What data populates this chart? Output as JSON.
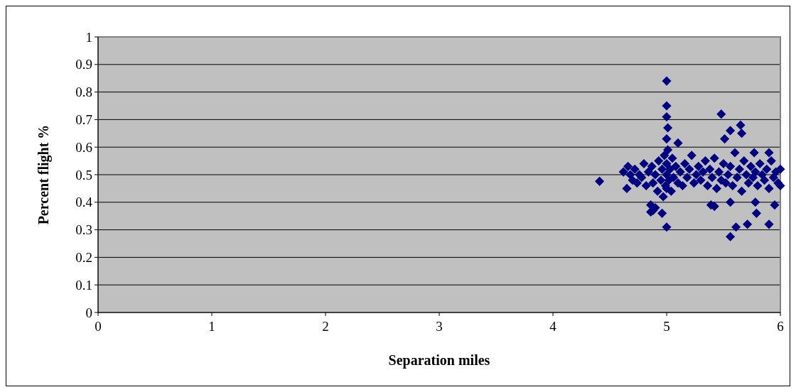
{
  "chart_data": {
    "type": "scatter",
    "xlabel": "Separation miles",
    "ylabel": "Percent flight %",
    "xlim": [
      0,
      6
    ],
    "xticks": [
      0,
      1,
      2,
      3,
      4,
      5,
      6
    ],
    "ylim": [
      0,
      1
    ],
    "yticks": [
      0,
      0.1,
      0.2,
      0.3,
      0.4,
      0.5,
      0.6,
      0.7,
      0.8,
      0.9,
      1
    ],
    "grid": "y",
    "marker": "diamond",
    "series": [
      {
        "color": "#000080",
        "x": [
          4.62,
          4.65,
          4.66,
          4.68,
          4.7,
          4.72,
          4.74,
          4.76,
          4.78,
          4.8,
          4.82,
          4.84,
          4.86,
          4.87,
          4.88,
          4.9,
          4.92,
          4.93,
          4.95,
          4.96,
          4.97,
          4.98,
          4.99,
          5,
          5,
          5,
          5.01,
          5.02,
          5.03,
          5.04,
          5.05,
          5.06,
          5.08,
          5.1,
          5.12,
          5.14,
          5.16,
          5.18,
          5.2,
          5.22,
          5.24,
          5.26,
          5.28,
          5.3,
          5.32,
          5.34,
          5.36,
          5.38,
          5.4,
          5.42,
          5.44,
          5.46,
          5.48,
          5.5,
          5.52,
          5.54,
          5.56,
          5.58,
          5.6,
          5.62,
          5.64,
          5.66,
          5.68,
          5.7,
          5.72,
          5.74,
          5.76,
          5.78,
          5.8,
          5.82,
          5.84,
          5.86,
          5.88,
          5.9,
          5.92,
          5.94,
          5.96,
          5.98,
          6,
          6,
          4.41,
          5,
          5,
          5,
          5.01,
          5,
          5.1,
          5,
          4.88,
          4.9,
          4.96,
          4.86,
          5.48,
          5.65,
          5.56,
          5.66,
          5.51,
          5.56,
          5.61,
          5.71,
          5.9,
          5.95,
          5.78,
          5.79,
          5.56,
          5.39,
          5.42,
          5.9,
          5.77
        ],
        "values": [
          0.51,
          0.45,
          0.53,
          0.5,
          0.48,
          0.52,
          0.47,
          0.5,
          0.49,
          0.54,
          0.46,
          0.51,
          0.39,
          0.53,
          0.47,
          0.5,
          0.44,
          0.55,
          0.48,
          0.52,
          0.42,
          0.57,
          0.46,
          0.5,
          0.54,
          0.45,
          0.59,
          0.48,
          0.52,
          0.44,
          0.56,
          0.49,
          0.53,
          0.47,
          0.51,
          0.46,
          0.54,
          0.49,
          0.52,
          0.57,
          0.47,
          0.5,
          0.53,
          0.48,
          0.51,
          0.55,
          0.46,
          0.52,
          0.49,
          0.56,
          0.45,
          0.51,
          0.48,
          0.54,
          0.47,
          0.5,
          0.53,
          0.46,
          0.58,
          0.49,
          0.52,
          0.44,
          0.55,
          0.5,
          0.47,
          0.53,
          0.49,
          0.51,
          0.46,
          0.54,
          0.5,
          0.48,
          0.52,
          0.45,
          0.55,
          0.49,
          0.51,
          0.47,
          0.52,
          0.46,
          0.476,
          0.84,
          0.75,
          0.71,
          0.67,
          0.63,
          0.615,
          0.31,
          0.37,
          0.38,
          0.36,
          0.365,
          0.72,
          0.68,
          0.66,
          0.65,
          0.63,
          0.275,
          0.31,
          0.32,
          0.32,
          0.39,
          0.4,
          0.36,
          0.4,
          0.39,
          0.385,
          0.58,
          0.58
        ]
      }
    ]
  }
}
